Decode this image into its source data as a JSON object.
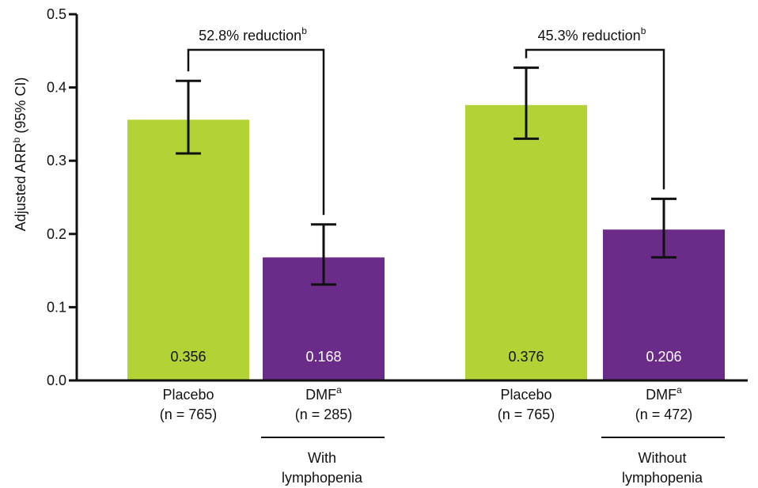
{
  "chart_data": {
    "type": "bar",
    "ylabel": "Adjusted ARR",
    "ylabel_sup": "b",
    "ylabel_suffix": " (95% CI)",
    "ylim": [
      0,
      0.5
    ],
    "yticks": [
      "0.0",
      "0.1",
      "0.2",
      "0.3",
      "0.4",
      "0.5"
    ],
    "grid": false,
    "colors": {
      "placebo": "#b2d235",
      "dmf": "#6a2b89"
    },
    "groups": [
      {
        "label_line1": "With",
        "label_line2": "lymphopenia",
        "reduction_text": "52.8% reduction",
        "reduction_sup": "b",
        "bars": [
          {
            "name": "Placebo",
            "n_label": "(n = 765)",
            "value": 0.356,
            "value_label": "0.356",
            "ci_low": 0.31,
            "ci_high": 0.409,
            "color_key": "placebo"
          },
          {
            "name": "DMF",
            "name_sup": "a",
            "n_label": "(n = 285)",
            "value": 0.168,
            "value_label": "0.168",
            "ci_low": 0.131,
            "ci_high": 0.213,
            "color_key": "dmf"
          }
        ]
      },
      {
        "label_line1": "Without",
        "label_line2": "lymphopenia",
        "reduction_text": "45.3% reduction",
        "reduction_sup": "b",
        "bars": [
          {
            "name": "Placebo",
            "n_label": "(n = 765)",
            "value": 0.376,
            "value_label": "0.376",
            "ci_low": 0.33,
            "ci_high": 0.427,
            "color_key": "placebo"
          },
          {
            "name": "DMF",
            "name_sup": "a",
            "n_label": "(n = 472)",
            "value": 0.206,
            "value_label": "0.206",
            "ci_low": 0.168,
            "ci_high": 0.248,
            "color_key": "dmf"
          }
        ]
      }
    ]
  }
}
